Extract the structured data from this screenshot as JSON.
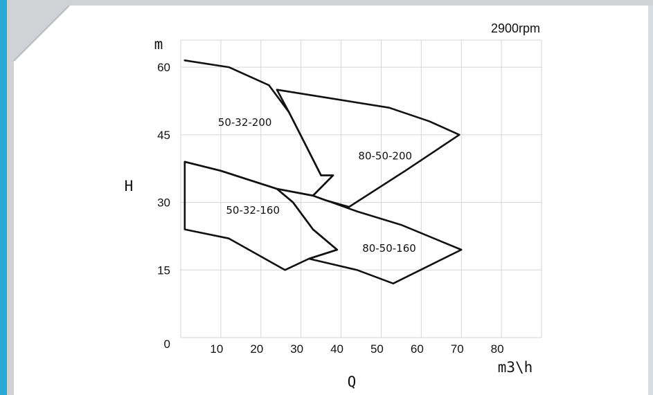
{
  "chart_data": {
    "type": "line",
    "speed_label": "2900rpm",
    "xlabel": "Q",
    "xunit": "m3\\h",
    "ylabel": "H",
    "yunit": "m",
    "xlim": [
      0,
      90
    ],
    "ylim": [
      0,
      66
    ],
    "x_ticks": [
      10,
      20,
      30,
      40,
      50,
      60,
      70,
      80
    ],
    "y_ticks": [
      0,
      15,
      30,
      45,
      60
    ],
    "grid": true,
    "series": [
      {
        "name": "50-32-200",
        "points": [
          [
            1,
            61.5
          ],
          [
            12,
            60
          ],
          [
            22,
            56
          ],
          [
            27,
            50
          ],
          [
            31,
            43
          ],
          [
            35,
            36
          ],
          [
            38,
            36
          ],
          [
            33,
            31.5
          ],
          [
            24,
            33
          ],
          [
            10,
            37
          ],
          [
            1,
            39
          ]
        ]
      },
      {
        "name": "80-50-200",
        "points": [
          [
            24,
            55
          ],
          [
            38,
            53
          ],
          [
            52,
            51
          ],
          [
            62,
            48
          ],
          [
            69.5,
            45
          ],
          [
            56,
            37
          ],
          [
            42,
            29
          ],
          [
            36,
            30.5
          ],
          [
            33,
            31.5
          ],
          [
            38,
            36
          ],
          [
            35,
            36
          ],
          [
            31,
            43
          ],
          [
            27,
            50
          ],
          [
            24,
            55
          ]
        ]
      },
      {
        "name": "50-32-160",
        "points": [
          [
            1,
            39
          ],
          [
            10,
            37
          ],
          [
            24,
            33
          ],
          [
            28,
            30
          ],
          [
            33,
            24
          ],
          [
            39,
            19.5
          ],
          [
            32,
            17.5
          ],
          [
            26,
            15
          ],
          [
            20,
            18
          ],
          [
            12,
            22
          ],
          [
            1,
            24
          ],
          [
            1,
            39
          ]
        ]
      },
      {
        "name": "80-50-160",
        "points": [
          [
            24,
            33
          ],
          [
            33,
            31.5
          ],
          [
            44,
            28
          ],
          [
            55,
            25
          ],
          [
            70,
            19.5
          ],
          [
            53,
            12
          ],
          [
            44,
            15
          ],
          [
            32,
            17.5
          ],
          [
            39,
            19.5
          ],
          [
            33,
            24
          ],
          [
            28,
            30
          ],
          [
            24,
            33
          ]
        ]
      }
    ]
  }
}
